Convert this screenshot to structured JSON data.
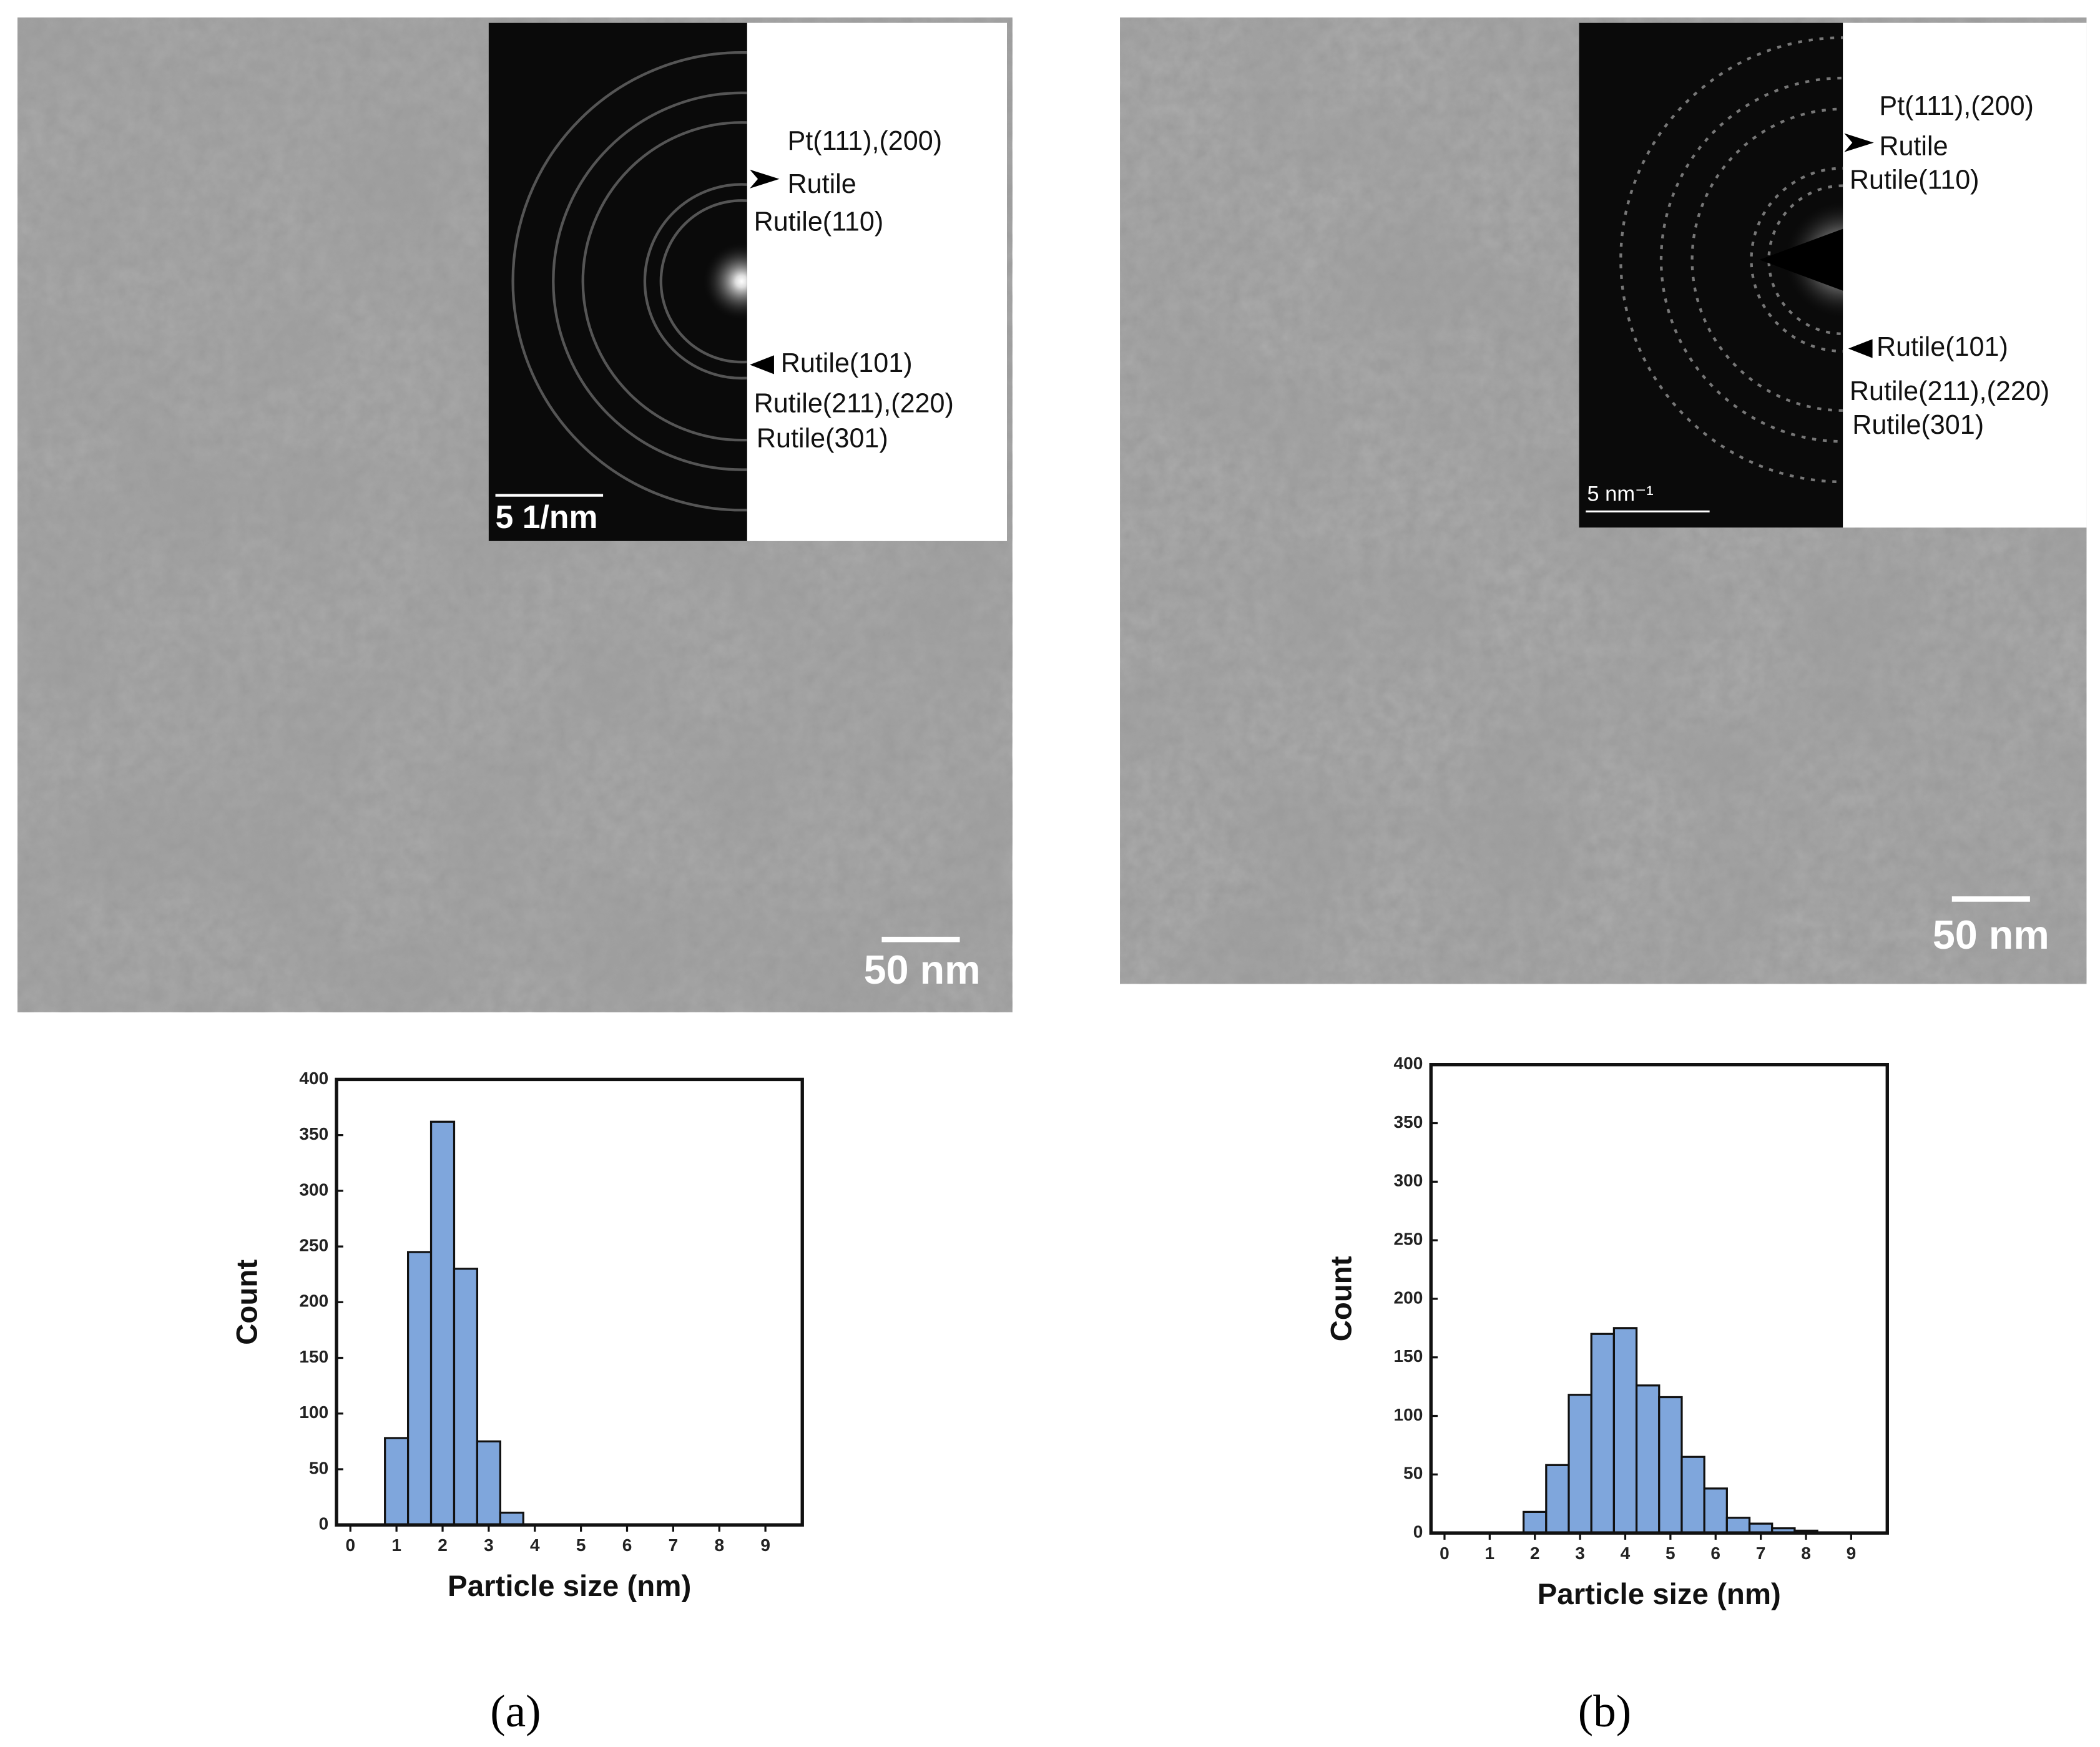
{
  "images": [
    {
      "scale_bar": "50 nm",
      "inset_scale_bar": "5 1/nm",
      "labels": [
        "Pt(111),(200)",
        "Rutile",
        "Rutile(110)",
        "Rutile(101)",
        "Rutile(211),(220)",
        "Rutile(301)"
      ]
    },
    {
      "scale_bar": "50 nm",
      "inset_scale_bar": "5 nm⁻¹",
      "labels": [
        "Pt(111),(200)",
        "Rutile",
        "Rutile(110)",
        "Rutile(101)",
        "Rutile(211),(220)",
        "Rutile(301)"
      ]
    }
  ],
  "chart_data": [
    {
      "type": "histogram",
      "xlabel": "Particle size (nm)",
      "ylabel": "Count",
      "color": "#7fa6dc",
      "bins": [
        0.75,
        1.25,
        1.75,
        2.25,
        2.75,
        3.25,
        3.75
      ],
      "counts": [
        78,
        245,
        362,
        230,
        75,
        11
      ],
      "xlim": [
        -0.3,
        9.8
      ],
      "xticks": [
        0,
        1,
        2,
        3,
        4,
        5,
        6,
        7,
        8,
        9
      ],
      "ylim": [
        0,
        400
      ],
      "yticks": [
        0,
        50,
        100,
        150,
        200,
        250,
        300,
        350,
        400
      ]
    },
    {
      "type": "histogram",
      "xlabel": "Particle size (nm)",
      "ylabel": "Count",
      "color": "#7fa6dc",
      "bins": [
        1.75,
        2.25,
        2.75,
        3.25,
        3.75,
        4.25,
        4.75,
        5.25,
        5.75,
        6.25,
        6.75,
        7.25,
        7.75,
        8.25
      ],
      "counts": [
        18,
        58,
        118,
        170,
        175,
        126,
        116,
        65,
        38,
        13,
        8,
        4,
        2
      ],
      "xlim": [
        -0.3,
        9.8
      ],
      "xticks": [
        0,
        1,
        2,
        3,
        4,
        5,
        6,
        7,
        8,
        9
      ],
      "ylim": [
        0,
        400
      ],
      "yticks": [
        0,
        50,
        100,
        150,
        200,
        250,
        300,
        350,
        400
      ]
    }
  ],
  "panel_labels": [
    "(a)",
    "(b)"
  ]
}
